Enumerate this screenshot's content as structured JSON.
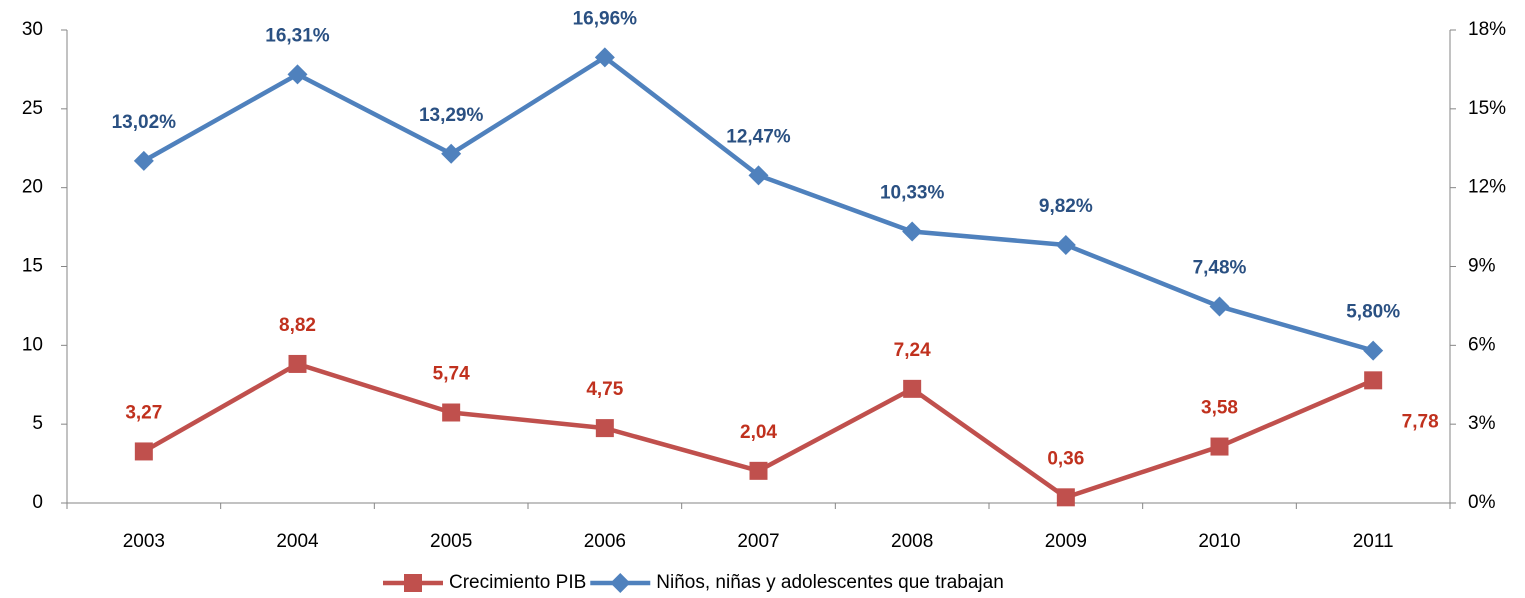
{
  "chart_data": {
    "type": "line",
    "categories": [
      "2003",
      "2004",
      "2005",
      "2006",
      "2007",
      "2008",
      "2009",
      "2010",
      "2011"
    ],
    "series": [
      {
        "name": "Crecimiento PIB",
        "color": "#c0504d",
        "label_color": "#c0311e",
        "marker": "square",
        "values": [
          3.27,
          8.82,
          5.74,
          4.75,
          2.04,
          7.24,
          0.36,
          3.58,
          7.78
        ],
        "value_labels": [
          "3,27",
          "8,82",
          "5,74",
          "4,75",
          "2,04",
          "7,24",
          "0,36",
          "3,58",
          "7,78"
        ]
      },
      {
        "name": "Niños, niñas y adolescentes que trabajan",
        "color": "#4f81bd",
        "label_color": "#2a5082",
        "marker": "diamond",
        "axis": "y2",
        "values": [
          13.02,
          16.31,
          13.29,
          16.96,
          12.47,
          10.33,
          9.82,
          7.48,
          5.8
        ],
        "value_labels": [
          "13,02%",
          "16,31%",
          "13,29%",
          "16,96%",
          "12,47%",
          "10,33%",
          "9,82%",
          "7,48%",
          "5,80%"
        ]
      }
    ],
    "ylim": [
      0,
      30
    ],
    "yticks": [
      0,
      5,
      10,
      15,
      20,
      25,
      30
    ],
    "y2lim": [
      0,
      18
    ],
    "y2ticks": [
      {
        "value": 0,
        "label": "0%"
      },
      {
        "value": 3,
        "label": "3%"
      },
      {
        "value": 6,
        "label": "6%"
      },
      {
        "value": 9,
        "label": "9%"
      },
      {
        "value": 12,
        "label": "12%"
      },
      {
        "value": 15,
        "label": "15%"
      },
      {
        "value": 18,
        "label": "18%"
      }
    ],
    "grid": false,
    "legend": "bottom"
  }
}
